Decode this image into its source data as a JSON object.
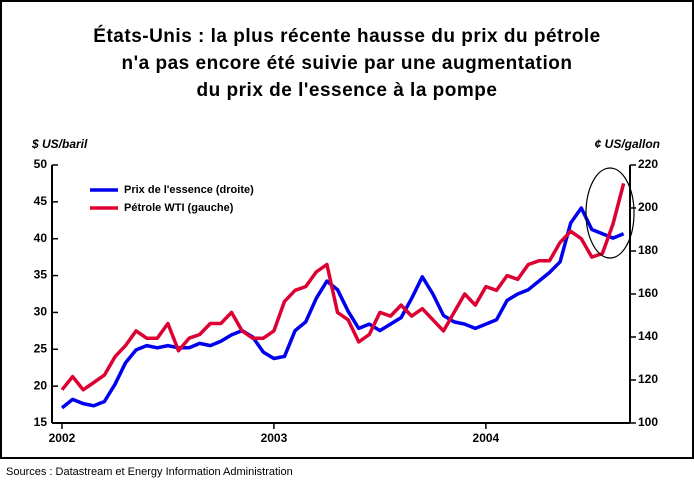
{
  "chart_data": {
    "type": "line",
    "title": [
      "États-Unis : la plus récente hausse du prix du pétrole",
      "n'a pas encore été suivie par une augmentation",
      "du prix de l'essence à la pompe"
    ],
    "y_label": "$ US/baril",
    "y2_label": "¢ US/gallon",
    "source": "Sources : Datastream et Energy Information Administration",
    "x": [
      2002.0,
      2002.05,
      2002.1,
      2002.15,
      2002.2,
      2002.25,
      2002.3,
      2002.35,
      2002.4,
      2002.45,
      2002.5,
      2002.55,
      2002.6,
      2002.65,
      2002.7,
      2002.75,
      2002.8,
      2002.85,
      2002.9,
      2002.95,
      2003.0,
      2003.05,
      2003.1,
      2003.15,
      2003.2,
      2003.25,
      2003.3,
      2003.35,
      2003.4,
      2003.45,
      2003.5,
      2003.55,
      2003.6,
      2003.65,
      2003.7,
      2003.75,
      2003.8,
      2003.85,
      2003.9,
      2003.95,
      2004.0,
      2004.05,
      2004.1,
      2004.15,
      2004.2,
      2004.25,
      2004.3,
      2004.35,
      2004.4,
      2004.45,
      2004.5,
      2004.55,
      2004.6,
      2004.65
    ],
    "series": [
      {
        "name": "Prix de l'essence (droite)",
        "color": "#0000ee",
        "axis": "y2",
        "values": [
          107,
          111,
          109,
          108,
          110,
          118,
          128,
          134,
          136,
          135,
          136,
          135,
          135,
          137,
          136,
          138,
          141,
          143,
          140,
          133,
          130,
          131,
          143,
          147,
          158,
          166,
          162,
          152,
          144,
          146,
          143,
          146,
          149,
          158,
          168,
          160,
          150,
          147,
          146,
          144,
          146,
          148,
          157,
          160,
          162,
          166,
          170,
          175,
          193,
          200,
          190,
          188,
          186,
          188
        ]
      },
      {
        "name": "Pétrole WTI (gauche)",
        "color": "#dd0033",
        "axis": "y",
        "values": [
          19.5,
          21.3,
          19.5,
          20.5,
          21.5,
          24,
          25.5,
          27.5,
          26.5,
          26.5,
          28.5,
          24.8,
          26.5,
          27,
          28.5,
          28.5,
          30,
          27.5,
          26.5,
          26.5,
          27.5,
          31.5,
          33,
          33.5,
          35.5,
          36.5,
          30,
          29,
          26,
          27,
          30,
          29.5,
          31,
          29.5,
          30.5,
          29,
          27.5,
          30,
          32.5,
          31,
          33.5,
          33,
          35,
          34.5,
          36.5,
          37,
          37,
          39.5,
          41,
          40,
          37.5,
          38,
          42,
          47.5
        ]
      }
    ],
    "xlim": [
      2001.953,
      2004.68
    ],
    "xticks": [
      2002,
      2003,
      2004
    ],
    "ylim": [
      15,
      50
    ],
    "yticks": [
      15,
      20,
      25,
      30,
      35,
      40,
      45,
      50
    ],
    "y2lim": [
      100,
      220
    ],
    "y2ticks": [
      100,
      120,
      140,
      160,
      180,
      200,
      220
    ],
    "grid": false,
    "legend": "upper left"
  }
}
